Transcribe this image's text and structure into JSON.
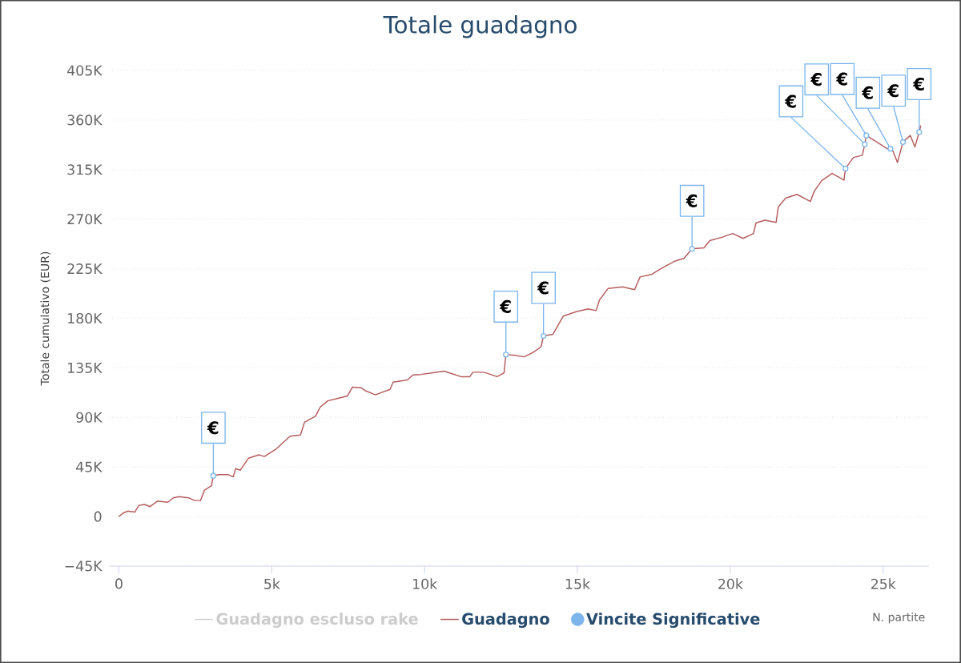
{
  "chart_data": {
    "type": "line",
    "title": "Totale guadagno",
    "xlabel": "N. partite",
    "ylabel": "Totale cumulativo (EUR)",
    "xlim": [
      -300,
      26500
    ],
    "ylim": [
      -45000,
      405000
    ],
    "xticks": [
      0,
      {
        "value": 5000,
        "label": "5k"
      },
      {
        "value": 10000,
        "label": "10k"
      },
      {
        "value": 15000,
        "label": "15k"
      },
      {
        "value": 20000,
        "label": "20k"
      },
      {
        "value": 25000,
        "label": "25k"
      }
    ],
    "yticks": [
      {
        "value": -45000,
        "label": "−45K"
      },
      0,
      {
        "value": 45000,
        "label": "45K"
      },
      {
        "value": 90000,
        "label": "90K"
      },
      {
        "value": 135000,
        "label": "135K"
      },
      {
        "value": 180000,
        "label": "180K"
      },
      {
        "value": 225000,
        "label": "225K"
      },
      {
        "value": 270000,
        "label": "270K"
      },
      {
        "value": 315000,
        "label": "315K"
      },
      {
        "value": 360000,
        "label": "360K"
      },
      {
        "value": 405000,
        "label": "405K"
      }
    ],
    "grid": "y",
    "legend": "bottom",
    "series": [
      {
        "name": "Guadagno escluso rake",
        "color": "#cccccc"
      },
      {
        "name": "Guadagno",
        "type": "line",
        "color": "#b55d5d",
        "line_style": "solid",
        "marker": "none",
        "x": [
          0,
          130,
          290,
          520,
          650,
          840,
          1020,
          1260,
          1600,
          1780,
          1960,
          2280,
          2480,
          2670,
          2800,
          3030,
          3090,
          3270,
          3580,
          3740,
          3820,
          3970,
          4240,
          4580,
          4760,
          5130,
          5600,
          5940,
          6070,
          6430,
          6590,
          6830,
          7190,
          7480,
          7640,
          7920,
          8080,
          8390,
          8870,
          8970,
          9440,
          9620,
          9880,
          10280,
          10640,
          11190,
          11480,
          11580,
          11950,
          12370,
          12600,
          12660,
          12890,
          13260,
          13550,
          13810,
          13890,
          14200,
          14540,
          14960,
          15350,
          15610,
          15720,
          16000,
          16470,
          16870,
          17050,
          17440,
          17760,
          18200,
          18490,
          18750,
          19140,
          19330,
          19720,
          20080,
          20420,
          20760,
          20840,
          21130,
          21500,
          21570,
          21810,
          22180,
          22620,
          22750,
          22990,
          23330,
          23720,
          23770,
          24030,
          24320,
          24400,
          24450,
          24760,
          25130,
          25240,
          25310,
          25470,
          25650,
          25890,
          26040,
          26180,
          26230
        ],
        "values": [
          0,
          3000,
          5000,
          4000,
          10000,
          11000,
          9000,
          14000,
          13000,
          17000,
          18000,
          17000,
          14500,
          14500,
          24000,
          28000,
          37000,
          38000,
          38000,
          36000,
          43500,
          42000,
          53000,
          56000,
          54500,
          61000,
          73000,
          74000,
          85500,
          91000,
          99500,
          105000,
          107500,
          109500,
          117500,
          117000,
          114000,
          110500,
          115500,
          122000,
          124000,
          128500,
          129000,
          130500,
          132000,
          127000,
          127000,
          131000,
          131000,
          127000,
          130500,
          147000,
          146500,
          145000,
          149000,
          154000,
          164000,
          165500,
          182000,
          186000,
          188500,
          187000,
          196500,
          207000,
          208500,
          206000,
          217500,
          220000,
          225500,
          232000,
          234500,
          243000,
          244000,
          250500,
          253500,
          257000,
          252500,
          257000,
          266500,
          269000,
          267000,
          281000,
          289000,
          292500,
          286000,
          295500,
          305000,
          311500,
          305500,
          316000,
          326000,
          328000,
          338000,
          346000,
          340500,
          334000,
          334000,
          332500,
          321500,
          340000,
          346000,
          335500,
          349000,
          355000
        ]
      },
      {
        "name": "Vincite Significative",
        "type": "scatter",
        "color": "#7cb5ec",
        "marker": "circle",
        "x": [
          3090,
          12660,
          13890,
          18750,
          23770,
          24400,
          24450,
          25240,
          25650,
          26180
        ],
        "values": [
          37000,
          147000,
          164000,
          243000,
          316000,
          338000,
          346000,
          334000,
          340000,
          349000
        ]
      }
    ],
    "annotations": [
      {
        "text": "€",
        "x": 3090,
        "y": 37000
      },
      {
        "text": "€",
        "x": 12660,
        "y": 147000
      },
      {
        "text": "€",
        "x": 13890,
        "y": 164000
      },
      {
        "text": "€",
        "x": 18750,
        "y": 243000
      },
      {
        "text": "€",
        "x": 23770,
        "y": 316000
      },
      {
        "text": "€",
        "x": 24400,
        "y": 338000
      },
      {
        "text": "€",
        "x": 24450,
        "y": 346000
      },
      {
        "text": "€",
        "x": 25240,
        "y": 334000
      },
      {
        "text": "€",
        "x": 25650,
        "y": 340000
      },
      {
        "text": "€",
        "x": 26180,
        "y": 349000
      }
    ]
  }
}
